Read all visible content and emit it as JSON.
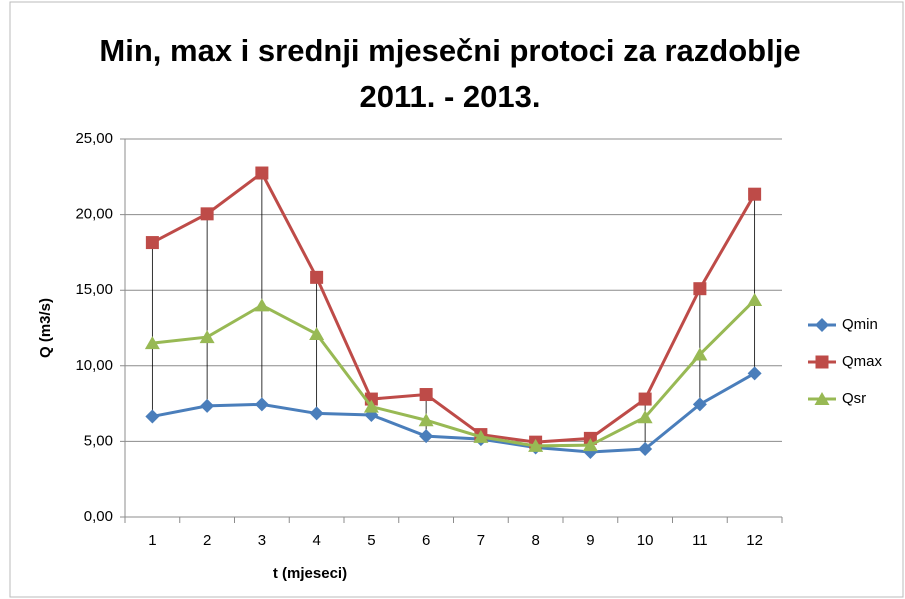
{
  "chart_data": {
    "type": "line",
    "title": "Min, max i srednji mjesečni protoci za razdoblje 2011. - 2013.",
    "x_label": "t (mjeseci)",
    "y_label": "Q (m3/s)",
    "categories": [
      "1",
      "2",
      "3",
      "4",
      "5",
      "6",
      "7",
      "8",
      "9",
      "10",
      "11",
      "12"
    ],
    "series": [
      {
        "name": "Qmin",
        "color": "#4a7ebb",
        "marker": "diamond",
        "values": [
          6.65,
          7.35,
          7.45,
          6.85,
          6.75,
          5.35,
          5.15,
          4.6,
          4.3,
          4.5,
          7.45,
          9.5
        ]
      },
      {
        "name": "Qmax",
        "color": "#be4b48",
        "marker": "square",
        "values": [
          18.15,
          20.05,
          22.75,
          15.85,
          7.8,
          8.1,
          5.45,
          4.95,
          5.2,
          7.8,
          15.1,
          21.35
        ]
      },
      {
        "name": "Qsr",
        "color": "#98b954",
        "marker": "triangle",
        "values": [
          11.5,
          11.9,
          14.0,
          12.1,
          7.3,
          6.4,
          5.3,
          4.7,
          4.75,
          6.6,
          10.75,
          14.35
        ]
      }
    ],
    "high_low_lines": true,
    "ylim": [
      0,
      25
    ],
    "yticks": [
      {
        "value": 0,
        "label": "0,00"
      },
      {
        "value": 5,
        "label": "5,00"
      },
      {
        "value": 10,
        "label": "10,00"
      },
      {
        "value": 15,
        "label": "15,00"
      },
      {
        "value": 20,
        "label": "20,00"
      },
      {
        "value": 25,
        "label": "25,00"
      }
    ],
    "grid": true,
    "legend": "right"
  }
}
